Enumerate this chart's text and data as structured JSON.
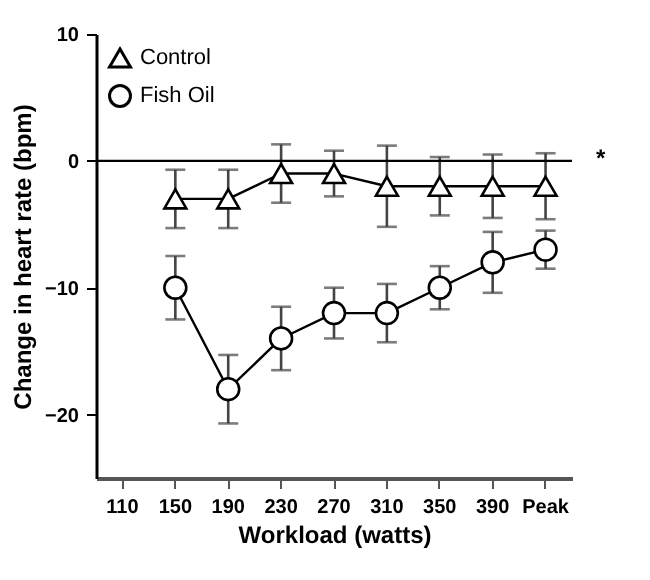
{
  "chart_data": {
    "type": "line",
    "xlabel": "Workload (watts)",
    "ylabel": "Change in heart rate (bpm)",
    "categories": [
      "110",
      "150",
      "190",
      "230",
      "270",
      "310",
      "350",
      "390",
      "Peak"
    ],
    "series": [
      {
        "name": "Control",
        "color": "#000000",
        "marker": "triangle",
        "values": [
          null,
          -3,
          -3,
          -1,
          -1,
          -2,
          -2,
          -2,
          -2
        ],
        "errors": [
          null,
          2.3,
          2.3,
          2.3,
          1.8,
          3.2,
          2.3,
          2.5,
          2.6
        ]
      },
      {
        "name": "Fish Oil",
        "color": "#000000",
        "marker": "circle",
        "values": [
          null,
          -10,
          -18,
          -14,
          -12,
          -12,
          -10,
          -8,
          -7
        ],
        "errors": [
          null,
          2.5,
          2.7,
          2.5,
          2,
          2.3,
          1.7,
          2.4,
          1.5
        ]
      }
    ],
    "ylim": [
      -25,
      10
    ],
    "yticks": [
      -20,
      -10,
      0,
      10
    ],
    "grid": false,
    "legend": "top left",
    "ref_lines": [
      {
        "axis": "y",
        "value": 0
      }
    ],
    "annotations": [
      "*"
    ]
  }
}
